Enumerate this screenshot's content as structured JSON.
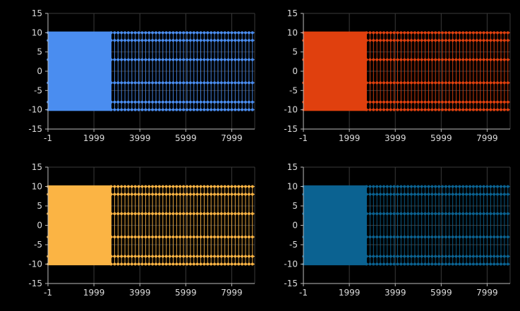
{
  "chart_data": [
    {
      "type": "line",
      "color": "#4a8df0",
      "x_ticks": [
        "-1",
        "1999",
        "3999",
        "5999",
        "7999"
      ],
      "y_ticks": [
        "15",
        "10",
        "5",
        "0",
        "-5",
        "-10",
        "-15"
      ],
      "xlim": [
        -1,
        8999
      ],
      "ylim": [
        -15,
        15
      ],
      "grid": true,
      "legend": "none",
      "series": [
        {
          "x_range": [
            -1,
            8999
          ],
          "y_values_cycle": [
            10,
            8,
            3,
            -3,
            -8,
            -10
          ],
          "dense_region_end_x": 2750,
          "marker_spacing_x": 150
        }
      ]
    },
    {
      "type": "line",
      "color": "#e0400e",
      "x_ticks": [
        "-1",
        "1999",
        "3999",
        "5999",
        "7999"
      ],
      "y_ticks": [
        "15",
        "10",
        "5",
        "0",
        "-5",
        "-10",
        "-15"
      ],
      "xlim": [
        -1,
        8999
      ],
      "ylim": [
        -15,
        15
      ],
      "grid": true,
      "legend": "none",
      "series": [
        {
          "x_range": [
            -1,
            8999
          ],
          "y_values_cycle": [
            10,
            8,
            3,
            -3,
            -8,
            -10
          ],
          "dense_region_end_x": 2750,
          "marker_spacing_x": 150
        }
      ]
    },
    {
      "type": "line",
      "color": "#fbb444",
      "x_ticks": [
        "-1",
        "1999",
        "3999",
        "5999",
        "7999"
      ],
      "y_ticks": [
        "15",
        "10",
        "5",
        "0",
        "-5",
        "-10",
        "-15"
      ],
      "xlim": [
        -1,
        8999
      ],
      "ylim": [
        -15,
        15
      ],
      "grid": true,
      "legend": "none",
      "series": [
        {
          "x_range": [
            -1,
            8999
          ],
          "y_values_cycle": [
            10,
            8,
            3,
            -3,
            -8,
            -10
          ],
          "dense_region_end_x": 2750,
          "marker_spacing_x": 150
        }
      ]
    },
    {
      "type": "line",
      "color": "#0b6291",
      "x_ticks": [
        "-1",
        "1999",
        "3999",
        "5999",
        "7999"
      ],
      "y_ticks": [
        "15",
        "10",
        "5",
        "0",
        "-5",
        "-10",
        "-15"
      ],
      "xlim": [
        -1,
        8999
      ],
      "ylim": [
        -15,
        15
      ],
      "grid": true,
      "legend": "none",
      "series": [
        {
          "x_range": [
            -1,
            8999
          ],
          "y_values_cycle": [
            10,
            8,
            3,
            -3,
            -8,
            -10
          ],
          "dense_region_end_x": 2750,
          "marker_spacing_x": 150
        }
      ]
    }
  ]
}
